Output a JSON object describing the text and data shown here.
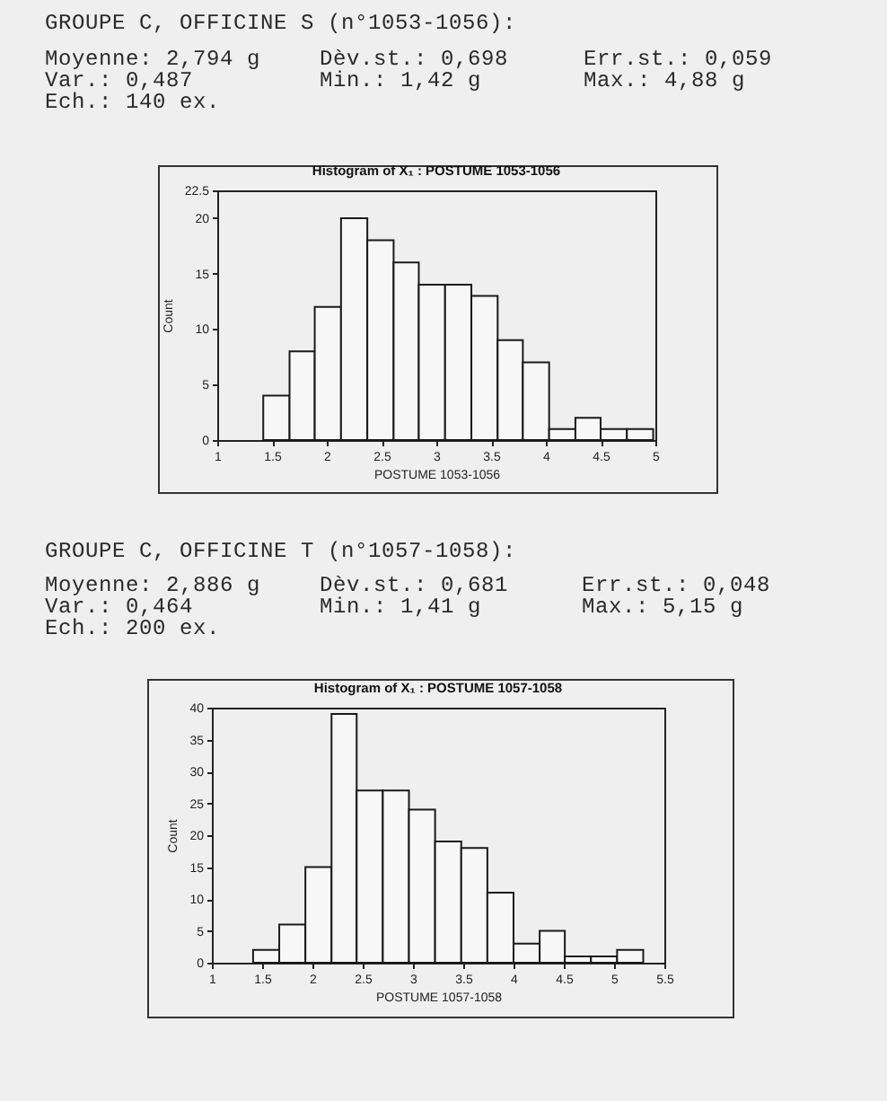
{
  "chart_data": [
    {
      "type": "histogram",
      "title": "Histogram of X₁ : POSTUME 1053-1056",
      "xlabel": "POSTUME 1053-1056",
      "ylabel": "Count",
      "annotations": [
        "GROUPE C, OFFICINE S (n°1053-1056):",
        "Moyenne: 2,794 g",
        "Dèv.st.: 0,698",
        "Err.st.: 0,059",
        "Var.: 0,487",
        "Min.: 1,42 g",
        "Max.: 4,88 g",
        "Ech.: 140 ex."
      ],
      "bins": [
        1.42,
        1.66,
        1.89,
        2.13,
        2.37,
        2.61,
        2.84,
        3.08,
        3.32,
        3.56,
        3.79,
        4.03,
        4.27,
        4.5,
        4.74,
        4.98
      ],
      "values": [
        4,
        8,
        12,
        20,
        18,
        16,
        14,
        14,
        13,
        9,
        7,
        1,
        2,
        1,
        1
      ],
      "color": "#f7f7f7",
      "xlim": [
        1,
        5
      ],
      "ylim": [
        0,
        22.5
      ],
      "xticks": [
        1,
        1.5,
        2,
        2.5,
        3,
        3.5,
        4,
        4.5,
        5
      ],
      "yticks": [
        0,
        5,
        10,
        15,
        20,
        22.5
      ]
    },
    {
      "type": "histogram",
      "title": "Histogram of X₁ : POSTUME 1057-1058",
      "xlabel": "POSTUME 1057-1058",
      "ylabel": "Count",
      "annotations": [
        "GROUPE C, OFFICINE T (n°1057-1058):",
        "Moyenne: 2,886 g",
        "Dèv.st.: 0,681",
        "Err.st.: 0,048",
        "Var.: 0,464",
        "Min.: 1,41 g",
        "Max.: 5,15 g",
        "Ech.: 200 ex."
      ],
      "bins": [
        1.41,
        1.67,
        1.93,
        2.19,
        2.44,
        2.7,
        2.96,
        3.22,
        3.48,
        3.74,
        4,
        4.26,
        4.51,
        4.77,
        5.03,
        5.29
      ],
      "values": [
        2,
        6,
        15,
        39,
        27,
        27,
        24,
        19,
        18,
        11,
        3,
        5,
        1,
        1,
        2
      ],
      "color": "#f7f7f7",
      "xlim": [
        1,
        5.5
      ],
      "ylim": [
        0,
        40
      ],
      "xticks": [
        1,
        1.5,
        2,
        2.5,
        3,
        3.5,
        4,
        4.5,
        5,
        5.5
      ],
      "yticks": [
        0,
        5,
        10,
        15,
        20,
        25,
        30,
        35,
        40
      ]
    }
  ]
}
